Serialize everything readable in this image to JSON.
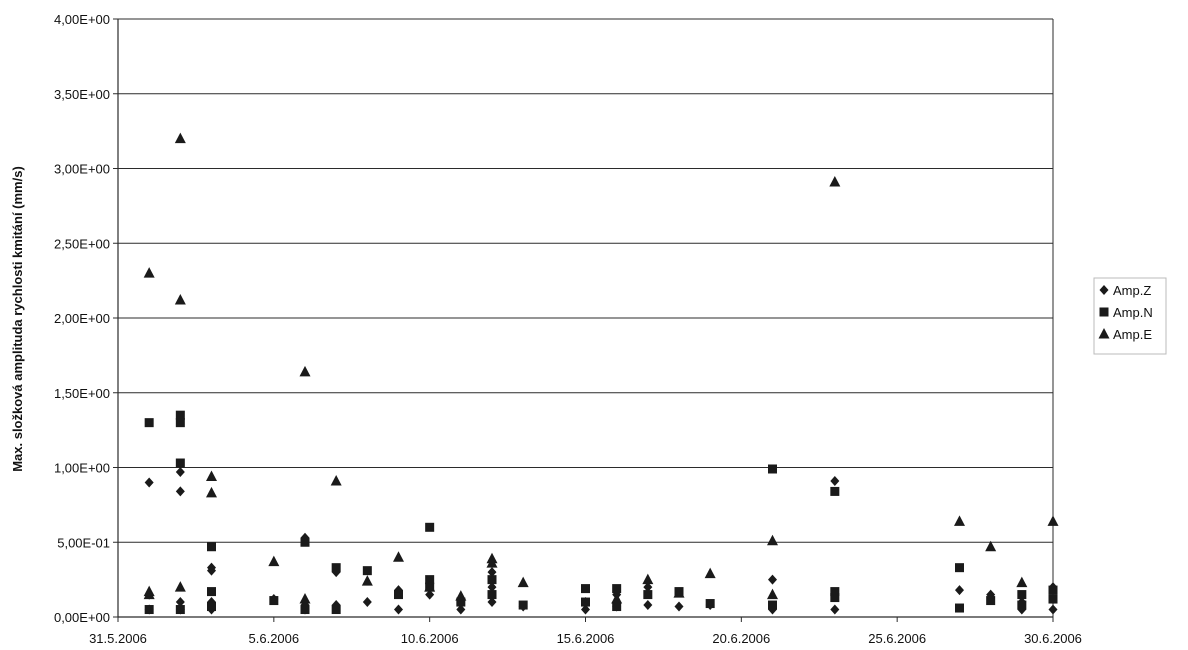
{
  "chart_data": {
    "type": "scatter",
    "title": "",
    "xlabel": "",
    "ylabel": "Max. složková amplituda rychlosti kmitání (mm/s)",
    "x_axis": {
      "type": "date",
      "min": "2006-05-31",
      "max": "2006-06-30",
      "tick_labels": [
        "31.5.2006",
        "5.6.2006",
        "10.6.2006",
        "15.6.2006",
        "20.6.2006",
        "25.6.2006",
        "30.6.2006"
      ]
    },
    "y_axis": {
      "min": 0,
      "max": 4,
      "tick_labels": [
        "0,00E+00",
        "5,00E-01",
        "1,00E+00",
        "1,50E+00",
        "2,00E+00",
        "2,50E+00",
        "3,00E+00",
        "3,50E+00",
        "4,00E+00"
      ]
    },
    "grid": {
      "horizontal": true,
      "vertical": false
    },
    "legend": {
      "position": "right"
    },
    "series": [
      {
        "name": "Amp.Z",
        "marker": "diamond",
        "color": "#1a1a1a",
        "points": [
          [
            "2006-06-01",
            0.9
          ],
          [
            "2006-06-01",
            0.15
          ],
          [
            "2006-06-01",
            0.05
          ],
          [
            "2006-06-02",
            0.97
          ],
          [
            "2006-06-02",
            0.84
          ],
          [
            "2006-06-02",
            0.1
          ],
          [
            "2006-06-02",
            0.05
          ],
          [
            "2006-06-03",
            0.33
          ],
          [
            "2006-06-03",
            0.31
          ],
          [
            "2006-06-03",
            0.1
          ],
          [
            "2006-06-03",
            0.05
          ],
          [
            "2006-06-05",
            0.12
          ],
          [
            "2006-06-06",
            0.53
          ],
          [
            "2006-06-06",
            0.08
          ],
          [
            "2006-06-06",
            0.05
          ],
          [
            "2006-06-07",
            0.08
          ],
          [
            "2006-06-07",
            0.3
          ],
          [
            "2006-06-08",
            0.1
          ],
          [
            "2006-06-09",
            0.18
          ],
          [
            "2006-06-09",
            0.05
          ],
          [
            "2006-06-10",
            0.15
          ],
          [
            "2006-06-11",
            0.05
          ],
          [
            "2006-06-12",
            0.3
          ],
          [
            "2006-06-12",
            0.2
          ],
          [
            "2006-06-12",
            0.1
          ],
          [
            "2006-06-13",
            0.07
          ],
          [
            "2006-06-15",
            0.1
          ],
          [
            "2006-06-15",
            0.05
          ],
          [
            "2006-06-16",
            0.15
          ],
          [
            "2006-06-16",
            0.07
          ],
          [
            "2006-06-17",
            0.08
          ],
          [
            "2006-06-17",
            0.2
          ],
          [
            "2006-06-18",
            0.07
          ],
          [
            "2006-06-19",
            0.08
          ],
          [
            "2006-06-21",
            0.25
          ],
          [
            "2006-06-21",
            0.05
          ],
          [
            "2006-06-23",
            0.91
          ],
          [
            "2006-06-23",
            0.05
          ],
          [
            "2006-06-27",
            0.18
          ],
          [
            "2006-06-28",
            0.15
          ],
          [
            "2006-06-29",
            0.1
          ],
          [
            "2006-06-29",
            0.05
          ],
          [
            "2006-06-30",
            0.2
          ],
          [
            "2006-06-30",
            0.05
          ]
        ]
      },
      {
        "name": "Amp.N",
        "marker": "square",
        "color": "#1a1a1a",
        "points": [
          [
            "2006-06-01",
            1.3
          ],
          [
            "2006-06-01",
            0.05
          ],
          [
            "2006-06-02",
            1.35
          ],
          [
            "2006-06-02",
            1.3
          ],
          [
            "2006-06-02",
            1.03
          ],
          [
            "2006-06-02",
            0.05
          ],
          [
            "2006-06-03",
            0.47
          ],
          [
            "2006-06-03",
            0.17
          ],
          [
            "2006-06-03",
            0.07
          ],
          [
            "2006-06-05",
            0.11
          ],
          [
            "2006-06-06",
            0.5
          ],
          [
            "2006-06-06",
            0.05
          ],
          [
            "2006-06-07",
            0.33
          ],
          [
            "2006-06-07",
            0.05
          ],
          [
            "2006-06-08",
            0.31
          ],
          [
            "2006-06-09",
            0.15
          ],
          [
            "2006-06-10",
            0.6
          ],
          [
            "2006-06-10",
            0.25
          ],
          [
            "2006-06-10",
            0.2
          ],
          [
            "2006-06-11",
            0.1
          ],
          [
            "2006-06-12",
            0.25
          ],
          [
            "2006-06-12",
            0.15
          ],
          [
            "2006-06-13",
            0.08
          ],
          [
            "2006-06-15",
            0.19
          ],
          [
            "2006-06-15",
            0.1
          ],
          [
            "2006-06-16",
            0.19
          ],
          [
            "2006-06-16",
            0.07
          ],
          [
            "2006-06-17",
            0.15
          ],
          [
            "2006-06-18",
            0.17
          ],
          [
            "2006-06-19",
            0.09
          ],
          [
            "2006-06-21",
            0.99
          ],
          [
            "2006-06-21",
            0.08
          ],
          [
            "2006-06-23",
            0.84
          ],
          [
            "2006-06-23",
            0.17
          ],
          [
            "2006-06-23",
            0.13
          ],
          [
            "2006-06-27",
            0.33
          ],
          [
            "2006-06-27",
            0.06
          ],
          [
            "2006-06-28",
            0.11
          ],
          [
            "2006-06-29",
            0.15
          ],
          [
            "2006-06-29",
            0.08
          ],
          [
            "2006-06-30",
            0.18
          ],
          [
            "2006-06-30",
            0.12
          ]
        ]
      },
      {
        "name": "Amp.E",
        "marker": "triangle",
        "color": "#1a1a1a",
        "points": [
          [
            "2006-06-01",
            2.3
          ],
          [
            "2006-06-01",
            0.17
          ],
          [
            "2006-06-01",
            0.15
          ],
          [
            "2006-06-02",
            3.2
          ],
          [
            "2006-06-02",
            2.12
          ],
          [
            "2006-06-02",
            0.2
          ],
          [
            "2006-06-03",
            0.94
          ],
          [
            "2006-06-03",
            0.83
          ],
          [
            "2006-06-05",
            0.37
          ],
          [
            "2006-06-06",
            1.64
          ],
          [
            "2006-06-06",
            0.12
          ],
          [
            "2006-06-07",
            0.91
          ],
          [
            "2006-06-08",
            0.24
          ],
          [
            "2006-06-09",
            0.4
          ],
          [
            "2006-06-10",
            0.2
          ],
          [
            "2006-06-11",
            0.14
          ],
          [
            "2006-06-12",
            0.39
          ],
          [
            "2006-06-12",
            0.36
          ],
          [
            "2006-06-13",
            0.23
          ],
          [
            "2006-06-16",
            0.12
          ],
          [
            "2006-06-17",
            0.25
          ],
          [
            "2006-06-18",
            0.16
          ],
          [
            "2006-06-19",
            0.29
          ],
          [
            "2006-06-21",
            0.51
          ],
          [
            "2006-06-21",
            0.15
          ],
          [
            "2006-06-23",
            2.91
          ],
          [
            "2006-06-27",
            0.64
          ],
          [
            "2006-06-28",
            0.47
          ],
          [
            "2006-06-29",
            0.23
          ],
          [
            "2006-06-30",
            0.64
          ]
        ]
      }
    ]
  }
}
